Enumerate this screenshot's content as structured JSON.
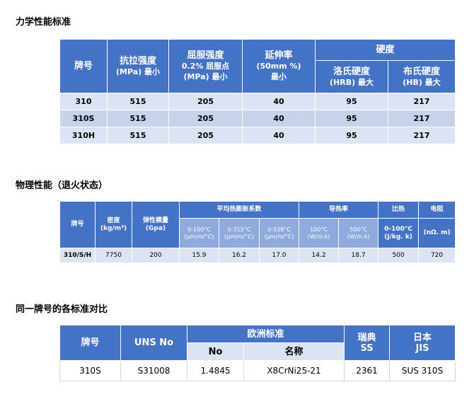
{
  "section1": {
    "title": "力学性能标准",
    "headers": {
      "grade": "牌号",
      "tensile": "抗拉强度",
      "tensile_unit": "(MPa) 最小",
      "yield": "屈服强度",
      "yield_sub": "0.2% 屈服点",
      "yield_unit": "(MPa) 最小",
      "elong": "延伸率",
      "elong_unit": "(50mm %)",
      "elong_min": "最小",
      "hardness": "硬度",
      "hrb": "洛氏硬度",
      "hrb_unit": "(HRB) 最大",
      "hb": "布氏硬度",
      "hb_unit": "(HB) 最大"
    },
    "rows": [
      [
        "310",
        "515",
        "205",
        "40",
        "95",
        "217"
      ],
      [
        "310S",
        "515",
        "205",
        "40",
        "95",
        "217"
      ],
      [
        "310H",
        "515",
        "205",
        "40",
        "95",
        "217"
      ]
    ]
  },
  "section2": {
    "title": "物理性能（退火状态）",
    "headers": {
      "grade": "牌号",
      "density": "密度",
      "density_unit": "(kg/m³)",
      "modulus": "弹性模量",
      "modulus_unit": "(Gpa)",
      "expansion": "平均热膨胀系数",
      "exp1": "0-100°C",
      "exp2": "0-315°C",
      "exp3": "0-538°C",
      "exp_unit": "(μm/m/°C)",
      "conductivity": "导热率",
      "cond1": "100°C",
      "cond2": "500°C",
      "cond_unit": "(W/m.k)",
      "specific_heat": "比热",
      "sh_range": "0-100°C",
      "sh_unit": "(J/kg. k)",
      "resistance": "电阻",
      "res_unit": "(nΩ. m)"
    },
    "row": [
      "310/S/H",
      "7750",
      "200",
      "15.9",
      "16.2",
      "17.0",
      "14.2",
      "18.7",
      "500",
      "720"
    ]
  },
  "section3": {
    "title": "同一牌号的各标准对比",
    "headers": {
      "grade": "牌号",
      "uns": "UNS No",
      "euro": "欧洲标准",
      "no": "No",
      "name": "名称",
      "sweden": "瑞典",
      "ss": "SS",
      "japan": "日本",
      "jis": "JIS"
    },
    "row": [
      "310S",
      "S31008",
      "1.4845",
      "X8CrNi25-21",
      "2361",
      "SUS 310S"
    ]
  }
}
